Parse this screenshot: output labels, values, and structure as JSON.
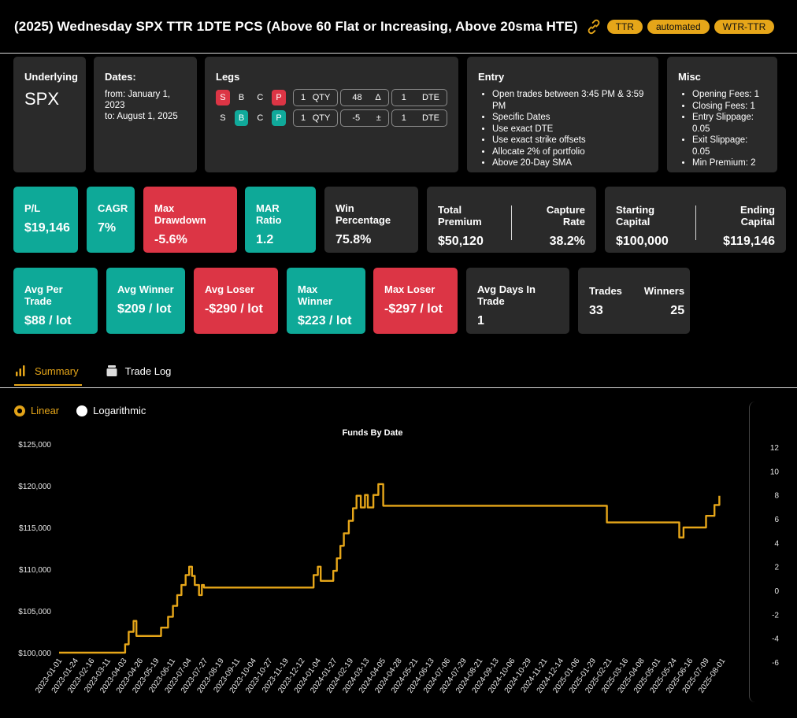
{
  "header": {
    "title": "(2025) Wednesday SPX TTR 1DTE PCS (Above 60 Flat or Increasing, Above 20sma HTE)",
    "tags": [
      "TTR",
      "automated",
      "WTR-TTR"
    ]
  },
  "underlying": {
    "label": "Underlying",
    "value": "SPX"
  },
  "dates": {
    "label": "Dates:",
    "from": "from: January 1, 2023",
    "to": "to: August 1, 2025"
  },
  "legs": {
    "label": "Legs",
    "rows": [
      {
        "s": "S",
        "b": "B",
        "c": "C",
        "p": "P",
        "qty": "1",
        "qty_label": "QTY",
        "delta": "48",
        "delta_sym": "Δ",
        "dte": "1",
        "dte_label": "DTE"
      },
      {
        "s": "S",
        "b": "B",
        "c": "C",
        "p": "P",
        "qty": "1",
        "qty_label": "QTY",
        "delta": "-5",
        "delta_sym": "±",
        "dte": "1",
        "dte_label": "DTE"
      }
    ]
  },
  "entry": {
    "label": "Entry",
    "items": [
      "Open trades between 3:45 PM & 3:59 PM",
      "Specific Dates",
      "Use exact DTE",
      "Use exact strike offsets",
      "Allocate 2% of portfolio",
      "Above 20-Day SMA"
    ]
  },
  "misc": {
    "label": "Misc",
    "items": [
      "Opening Fees: 1",
      "Closing Fees: 1",
      "Entry Slippage: 0.05",
      "Exit Slippage: 0.05",
      "Min Premium: 2"
    ]
  },
  "metrics_row1": {
    "pl": {
      "label": "P/L",
      "value": "$19,146"
    },
    "cagr": {
      "label": "CAGR",
      "value": "7%"
    },
    "max_drawdown": {
      "label": "Max Drawdown",
      "value": "-5.6%"
    },
    "mar_ratio": {
      "label": "MAR Ratio",
      "value": "1.2"
    },
    "win_pct": {
      "label": "Win Percentage",
      "value": "75.8%"
    },
    "total_premium": {
      "label": "Total Premium",
      "value": "$50,120"
    },
    "capture_rate": {
      "label": "Capture Rate",
      "value": "38.2%"
    },
    "starting_capital": {
      "label": "Starting Capital",
      "value": "$100,000"
    },
    "ending_capital": {
      "label": "Ending Capital",
      "value": "$119,146"
    }
  },
  "metrics_row2": {
    "avg_per_trade": {
      "label": "Avg Per Trade",
      "value": "$88 / lot"
    },
    "avg_winner": {
      "label": "Avg Winner",
      "value": "$209 / lot"
    },
    "avg_loser": {
      "label": "Avg Loser",
      "value": "-$290 / lot"
    },
    "max_winner": {
      "label": "Max Winner",
      "value": "$223 / lot"
    },
    "max_loser": {
      "label": "Max Loser",
      "value": "-$297 / lot"
    },
    "avg_days": {
      "label": "Avg Days In Trade",
      "value": "1"
    },
    "trades": {
      "label": "Trades",
      "value": "33"
    },
    "winners": {
      "label": "Winners",
      "value": "25"
    }
  },
  "tabs": {
    "summary": "Summary",
    "trade_log": "Trade Log"
  },
  "scale": {
    "linear": "Linear",
    "log": "Logarithmic",
    "selected": "Linear"
  },
  "colors": {
    "accent": "#e6a619",
    "positive": "#0ea998",
    "negative": "#dc3545",
    "card": "#2a2a2a"
  },
  "chart_data": {
    "type": "line",
    "title": "Funds By Date",
    "y_ticks": [
      "$100,000",
      "$105,000",
      "$110,000",
      "$115,000",
      "$120,000",
      "$125,000"
    ],
    "y_range": [
      100000,
      125000
    ],
    "right_ticks": [
      "-6",
      "-4",
      "-2",
      "0",
      "2",
      "4",
      "6",
      "8",
      "10",
      "12"
    ],
    "x_ticks": [
      "2023-01-01",
      "2023-01-24",
      "2023-02-16",
      "2023-03-11",
      "2023-04-03",
      "2023-04-26",
      "2023-05-19",
      "2023-06-11",
      "2023-07-04",
      "2023-07-27",
      "2023-08-19",
      "2023-09-11",
      "2023-10-04",
      "2023-10-27",
      "2023-11-19",
      "2023-12-12",
      "2024-01-04",
      "2024-01-27",
      "2024-02-19",
      "2024-03-13",
      "2024-04-05",
      "2024-04-28",
      "2024-05-21",
      "2024-06-13",
      "2024-07-06",
      "2024-07-29",
      "2024-08-21",
      "2024-09-13",
      "2024-10-06",
      "2024-10-29",
      "2024-11-21",
      "2024-12-14",
      "2025-01-06",
      "2025-01-29",
      "2025-02-21",
      "2025-03-16",
      "2025-04-08",
      "2025-05-01",
      "2025-05-24",
      "2025-06-16",
      "2025-07-09",
      "2025-08-01"
    ],
    "series": [
      {
        "values": [
          [
            "2023-01-01",
            100000
          ],
          [
            "2023-04-03",
            100000
          ],
          [
            "2023-04-05",
            101000
          ],
          [
            "2023-04-10",
            102500
          ],
          [
            "2023-04-17",
            103800
          ],
          [
            "2023-04-21",
            102000
          ],
          [
            "2023-05-24",
            102000
          ],
          [
            "2023-05-26",
            103000
          ],
          [
            "2023-06-05",
            104300
          ],
          [
            "2023-06-12",
            105600
          ],
          [
            "2023-06-18",
            106900
          ],
          [
            "2023-06-24",
            108100
          ],
          [
            "2023-06-30",
            109300
          ],
          [
            "2023-07-05",
            110300
          ],
          [
            "2023-07-09",
            109200
          ],
          [
            "2023-07-13",
            108100
          ],
          [
            "2023-07-19",
            106900
          ],
          [
            "2023-07-23",
            108100
          ],
          [
            "2023-07-26",
            107800
          ],
          [
            "2023-12-26",
            107800
          ],
          [
            "2023-12-29",
            109300
          ],
          [
            "2024-01-04",
            110300
          ],
          [
            "2024-01-08",
            108600
          ],
          [
            "2024-01-23",
            108600
          ],
          [
            "2024-01-26",
            109800
          ],
          [
            "2024-01-31",
            111300
          ],
          [
            "2024-02-05",
            112800
          ],
          [
            "2024-02-10",
            114300
          ],
          [
            "2024-02-17",
            115800
          ],
          [
            "2024-02-23",
            117300
          ],
          [
            "2024-02-28",
            118800
          ],
          [
            "2024-03-05",
            117400
          ],
          [
            "2024-03-11",
            118900
          ],
          [
            "2024-03-15",
            117400
          ],
          [
            "2024-03-23",
            118900
          ],
          [
            "2024-03-30",
            120200
          ],
          [
            "2024-04-06",
            117600
          ],
          [
            "2025-02-16",
            117600
          ],
          [
            "2025-02-18",
            115600
          ],
          [
            "2025-05-28",
            115600
          ],
          [
            "2025-06-01",
            113800
          ],
          [
            "2025-06-07",
            115000
          ],
          [
            "2025-07-02",
            115000
          ],
          [
            "2025-07-09",
            116400
          ],
          [
            "2025-07-21",
            117700
          ],
          [
            "2025-07-28",
            118800
          ]
        ]
      }
    ]
  }
}
